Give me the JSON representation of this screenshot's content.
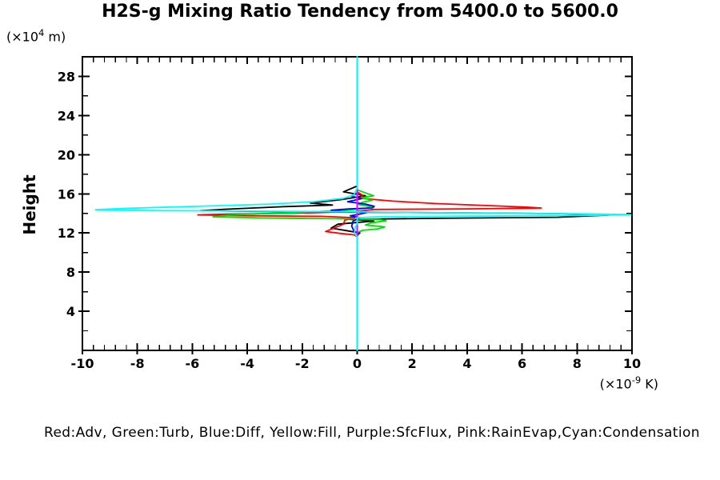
{
  "title": "H2S-g Mixing Ratio Tendency from 5400.0 to 5600.0",
  "y_axis": {
    "label": "Height",
    "unit_base": "(×10",
    "unit_exp": "4",
    "unit_rest": " m)"
  },
  "x_axis": {
    "unit_base": "(×10",
    "unit_exp": "-9",
    "unit_rest": " K)"
  },
  "legend_text": "Red:Adv, Green:Turb, Blue:Diff, Yellow:Fill, Purple:SfcFlux, Pink:RainEvap,Cyan:Condensation",
  "colors": {
    "background": "#ffffff",
    "frame": "#000000",
    "zero_line": "#00ffff"
  },
  "chart_data": {
    "type": "line",
    "profile_orientation": "x_is_value_y_is_height",
    "title": "H2S-g Mixing Ratio Tendency from 5400.0 to 5600.0",
    "xlabel": "(×10^-9 K)",
    "ylabel": "Height (×10^4 m)",
    "xlim": [
      -10,
      10
    ],
    "ylim": [
      0,
      30
    ],
    "x_ticks": [
      "-10",
      "-8",
      "-6",
      "-4",
      "-2",
      "0",
      "2",
      "4",
      "6",
      "8",
      "10"
    ],
    "y_ticks": [
      "4",
      "8",
      "12",
      "16",
      "20",
      "24",
      "28"
    ],
    "x_minor_step": 0.4,
    "y_minor_step": 2,
    "grid": false,
    "legend_position": "bottom",
    "zero_reference_line": {
      "value": 0,
      "color": "#00ffff"
    },
    "series": [
      {
        "name": "unlabeled",
        "color_name": "Black",
        "color": "#000000",
        "points": [
          [
            0,
            29.7
          ],
          [
            0,
            16.8
          ],
          [
            -0.5,
            16.2
          ],
          [
            0.3,
            15.8
          ],
          [
            -0.6,
            15.4
          ],
          [
            -1.7,
            15.05
          ],
          [
            -0.9,
            14.85
          ],
          [
            -2.7,
            14.68
          ],
          [
            -4.85,
            14.42
          ],
          [
            -5.7,
            14.28
          ],
          [
            -3.0,
            14.18
          ],
          [
            0.5,
            14.12
          ],
          [
            4.0,
            14.05
          ],
          [
            7.5,
            13.97
          ],
          [
            9.15,
            13.82
          ],
          [
            7.3,
            13.6
          ],
          [
            3.0,
            13.5
          ],
          [
            -0.3,
            13.4
          ],
          [
            0.6,
            13.22
          ],
          [
            -0.7,
            12.9
          ],
          [
            -0.95,
            12.5
          ],
          [
            -0.3,
            12.2
          ],
          [
            0.1,
            12.0
          ],
          [
            0,
            11.8
          ],
          [
            0,
            0.3
          ]
        ]
      },
      {
        "name": "Adv",
        "color_name": "Red",
        "color": "#ff0000",
        "points": [
          [
            0,
            29.7
          ],
          [
            0,
            16.2
          ],
          [
            0.2,
            15.85
          ],
          [
            0.1,
            15.55
          ],
          [
            1.3,
            15.25
          ],
          [
            2.9,
            15.0
          ],
          [
            4.7,
            14.8
          ],
          [
            6.1,
            14.65
          ],
          [
            6.7,
            14.55
          ],
          [
            4.0,
            14.46
          ],
          [
            0.6,
            14.4
          ],
          [
            0,
            14.2
          ],
          [
            -2.2,
            14.02
          ],
          [
            -4.7,
            13.93
          ],
          [
            -5.8,
            13.85
          ],
          [
            -4.0,
            13.76
          ],
          [
            -1.3,
            13.7
          ],
          [
            -0.1,
            13.55
          ],
          [
            -0.45,
            13.3
          ],
          [
            -0.5,
            12.9
          ],
          [
            -1.15,
            12.15
          ],
          [
            -0.6,
            11.95
          ],
          [
            -0.1,
            11.8
          ],
          [
            0,
            11.6
          ],
          [
            0,
            0.3
          ]
        ]
      },
      {
        "name": "Turb",
        "color_name": "Green",
        "color": "#00dd00",
        "points": [
          [
            0,
            29.7
          ],
          [
            0,
            16.4
          ],
          [
            0.35,
            16.05
          ],
          [
            0.6,
            15.8
          ],
          [
            0.15,
            15.6
          ],
          [
            0.55,
            15.35
          ],
          [
            0.2,
            15.15
          ],
          [
            0.05,
            14.9
          ],
          [
            0.6,
            14.65
          ],
          [
            0.25,
            14.5
          ],
          [
            -0.4,
            14.35
          ],
          [
            -2.2,
            14.08
          ],
          [
            -4.0,
            13.92
          ],
          [
            -4.75,
            13.8
          ],
          [
            -5.25,
            13.65
          ],
          [
            -3.2,
            13.52
          ],
          [
            -0.5,
            13.45
          ],
          [
            0.8,
            13.38
          ],
          [
            1.05,
            13.25
          ],
          [
            0.5,
            13.02
          ],
          [
            0.3,
            12.82
          ],
          [
            1.0,
            12.62
          ],
          [
            0.75,
            12.42
          ],
          [
            0.2,
            12.27
          ],
          [
            0,
            12.05
          ],
          [
            0,
            0.3
          ]
        ]
      },
      {
        "name": "Diff",
        "color_name": "Blue",
        "color": "#0000ff",
        "points": [
          [
            0,
            29.7
          ],
          [
            0,
            16.1
          ],
          [
            -0.2,
            15.75
          ],
          [
            0.15,
            15.5
          ],
          [
            -0.35,
            15.2
          ],
          [
            0.3,
            14.95
          ],
          [
            0.62,
            14.72
          ],
          [
            0.55,
            14.56
          ],
          [
            -0.3,
            14.46
          ],
          [
            -0.95,
            14.32
          ],
          [
            -0.55,
            14.2
          ],
          [
            0.35,
            14.1
          ],
          [
            0.15,
            13.95
          ],
          [
            -0.25,
            13.75
          ],
          [
            0.1,
            13.55
          ],
          [
            -0.15,
            13.2
          ],
          [
            -0.2,
            12.7
          ],
          [
            -0.12,
            12.2
          ],
          [
            0.06,
            11.95
          ],
          [
            0,
            11.7
          ],
          [
            0,
            0.3
          ]
        ]
      },
      {
        "name": "Fill",
        "color_name": "Yellow",
        "color": "#e8e800",
        "points": [
          [
            0,
            30
          ],
          [
            0,
            0
          ]
        ]
      },
      {
        "name": "SfcFlux",
        "color_name": "Purple",
        "color": "#9900cc",
        "points": [
          [
            0,
            30
          ],
          [
            0,
            0
          ]
        ]
      },
      {
        "name": "RainEvap",
        "color_name": "Pink",
        "color": "#ff00ff",
        "points": [
          [
            0,
            30
          ],
          [
            0,
            0
          ]
        ]
      },
      {
        "name": "Condensation",
        "color_name": "Cyan",
        "color": "#00ffff",
        "points": [
          [
            0,
            30
          ],
          [
            0,
            16.6
          ],
          [
            -0.07,
            16.2
          ],
          [
            -0.12,
            15.9
          ],
          [
            -0.5,
            15.55
          ],
          [
            -1.6,
            15.2
          ],
          [
            -3.2,
            14.95
          ],
          [
            -4.85,
            14.8
          ],
          [
            -6.8,
            14.65
          ],
          [
            -8.6,
            14.5
          ],
          [
            -9.52,
            14.38
          ],
          [
            -8.0,
            14.3
          ],
          [
            -4.0,
            14.24
          ],
          [
            -0.6,
            14.18
          ],
          [
            1.5,
            14.1
          ],
          [
            5.0,
            14.02
          ],
          [
            8.0,
            13.96
          ],
          [
            9.95,
            13.88
          ],
          [
            8.5,
            13.8
          ],
          [
            4.0,
            13.72
          ],
          [
            0.8,
            13.66
          ],
          [
            0,
            13.55
          ],
          [
            0,
            13.0
          ],
          [
            -0.08,
            12.5
          ],
          [
            -0.1,
            12.0
          ],
          [
            -0.05,
            11.8
          ],
          [
            0,
            11.6
          ],
          [
            0,
            0
          ]
        ]
      }
    ]
  }
}
